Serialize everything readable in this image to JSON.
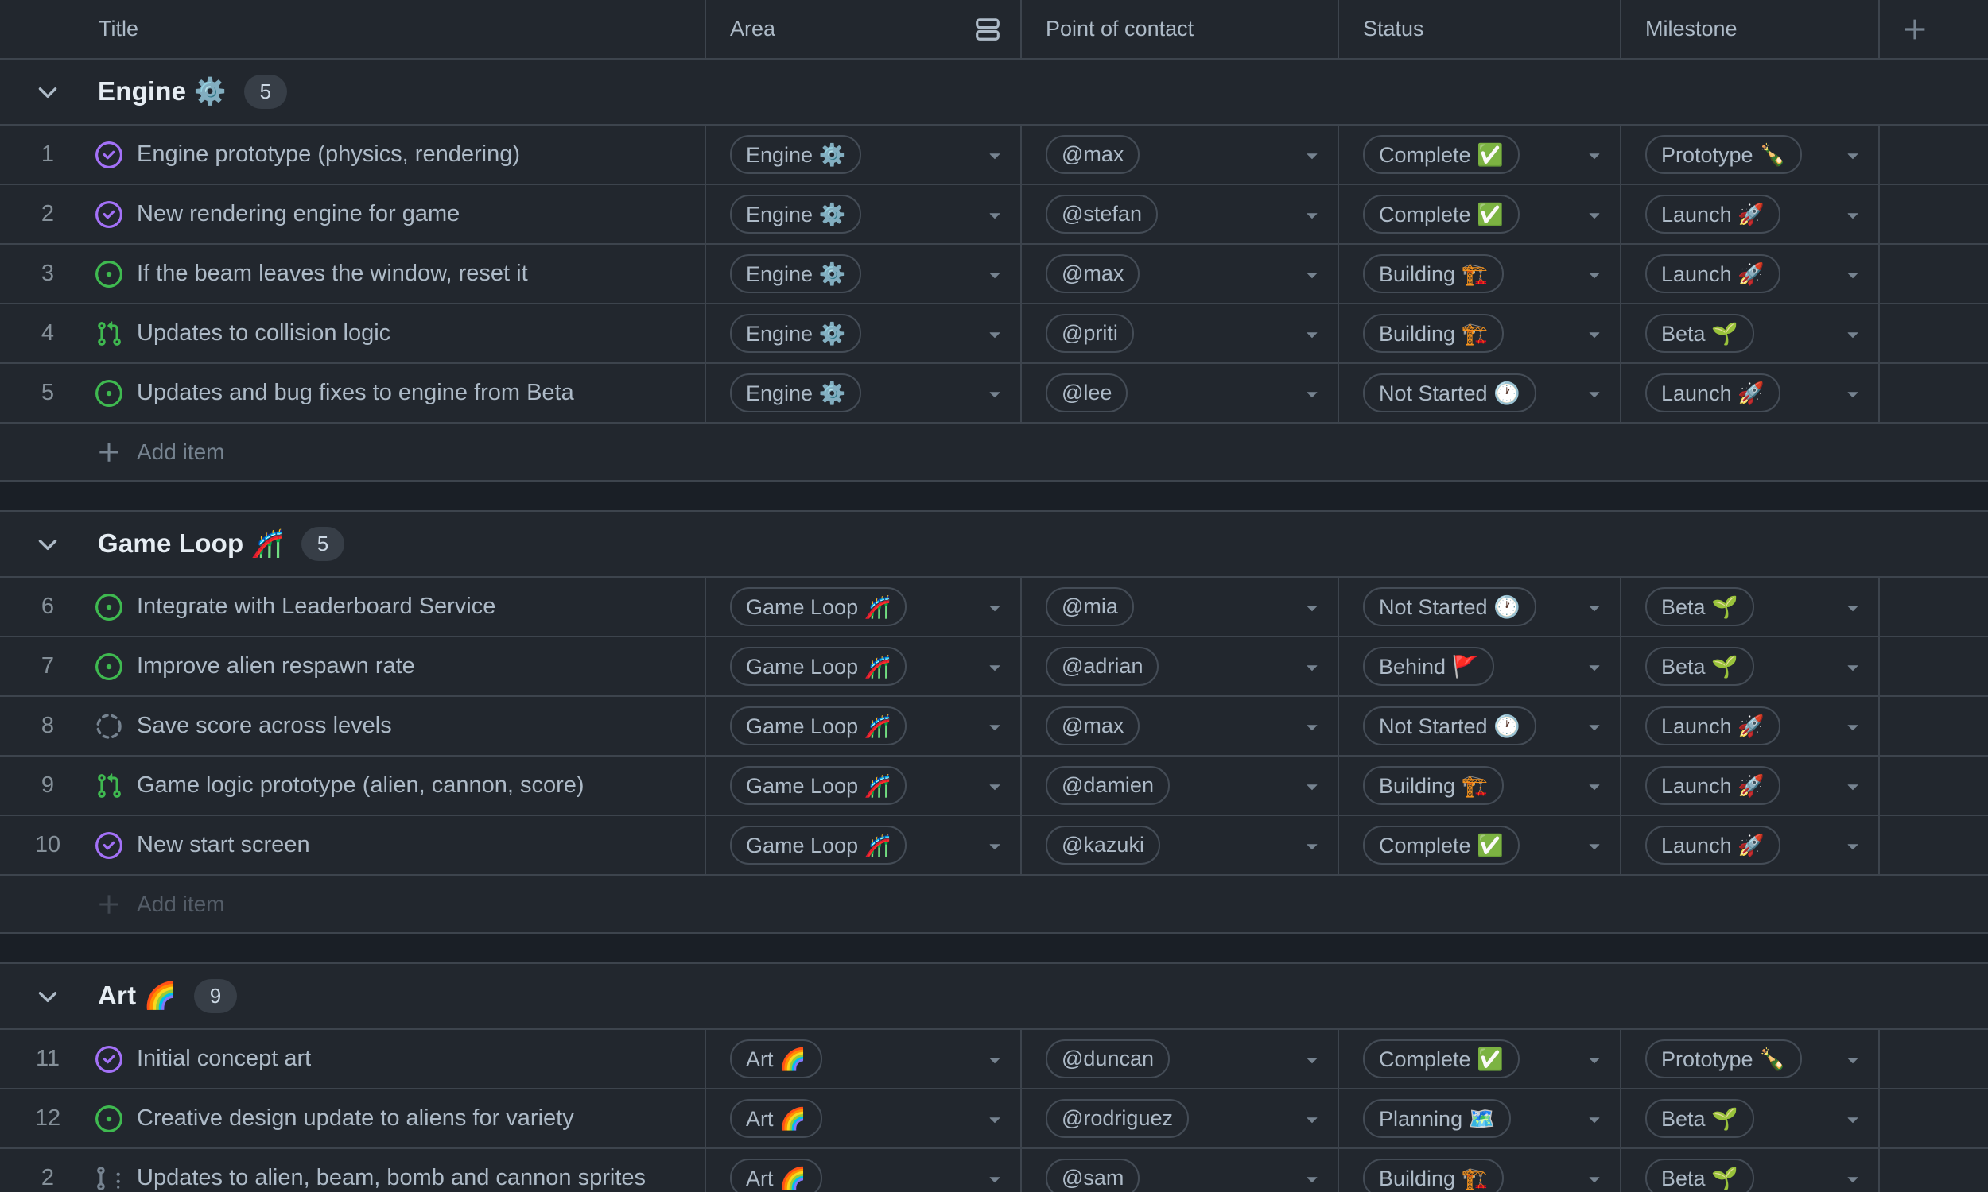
{
  "header": {
    "columns": [
      {
        "label": "Title"
      },
      {
        "label": "Area"
      },
      {
        "label": "Point of contact"
      },
      {
        "label": "Status"
      },
      {
        "label": "Milestone"
      }
    ]
  },
  "colors": {
    "issue_closed_purple": "#a371f7",
    "issue_open_green": "#3fb950",
    "draft_gray": "#768390",
    "row_background": "#22272e",
    "divider_band": "#1a1f26",
    "border": "#3d444d"
  },
  "groups": [
    {
      "name": "Engine ⚙️",
      "count": "5",
      "add_label": "Add item",
      "add_dim": false,
      "rows": [
        {
          "num": "1",
          "type": "issue-closed",
          "title": "Engine prototype (physics, rendering)",
          "area": "Engine ⚙️",
          "contact": "@max",
          "status": "Complete ✅",
          "milestone": "Prototype 🍾"
        },
        {
          "num": "2",
          "type": "issue-closed",
          "title": "New rendering engine for game",
          "area": "Engine ⚙️",
          "contact": "@stefan",
          "status": "Complete ✅",
          "milestone": "Launch 🚀"
        },
        {
          "num": "3",
          "type": "issue-open",
          "title": "If the beam leaves the window, reset it",
          "area": "Engine ⚙️",
          "contact": "@max",
          "status": "Building 🏗️",
          "milestone": "Launch 🚀"
        },
        {
          "num": "4",
          "type": "pull-request",
          "title": "Updates to collision logic",
          "area": "Engine ⚙️",
          "contact": "@priti",
          "status": "Building 🏗️",
          "milestone": "Beta 🌱"
        },
        {
          "num": "5",
          "type": "issue-open",
          "title": "Updates and bug fixes to engine from Beta",
          "area": "Engine ⚙️",
          "contact": "@lee",
          "status": "Not Started 🕐",
          "milestone": "Launch 🚀"
        }
      ]
    },
    {
      "name": "Game Loop 🎢",
      "count": "5",
      "add_label": "Add item",
      "add_dim": true,
      "rows": [
        {
          "num": "6",
          "type": "issue-open",
          "title": "Integrate with Leaderboard Service",
          "area": "Game Loop 🎢",
          "contact": "@mia",
          "status": "Not Started 🕐",
          "milestone": "Beta 🌱"
        },
        {
          "num": "7",
          "type": "issue-open",
          "title": "Improve alien respawn rate",
          "area": "Game Loop 🎢",
          "contact": "@adrian",
          "status": "Behind 🚩",
          "milestone": "Beta 🌱"
        },
        {
          "num": "8",
          "type": "draft-issue",
          "title": "Save score across levels",
          "area": "Game Loop 🎢",
          "contact": "@max",
          "status": "Not Started 🕐",
          "milestone": "Launch 🚀"
        },
        {
          "num": "9",
          "type": "pull-request",
          "title": "Game logic prototype (alien, cannon, score)",
          "area": "Game Loop 🎢",
          "contact": "@damien",
          "status": "Building 🏗️",
          "milestone": "Launch 🚀"
        },
        {
          "num": "10",
          "type": "issue-closed",
          "title": "New start screen",
          "area": "Game Loop 🎢",
          "contact": "@kazuki",
          "status": "Complete ✅",
          "milestone": "Launch 🚀"
        }
      ]
    },
    {
      "name": "Art 🌈",
      "count": "9",
      "add_label": null,
      "add_dim": false,
      "rows": [
        {
          "num": "11",
          "type": "issue-closed",
          "title": "Initial concept art",
          "area": "Art 🌈",
          "contact": "@duncan",
          "status": "Complete ✅",
          "milestone": "Prototype 🍾"
        },
        {
          "num": "12",
          "type": "issue-open",
          "title": "Creative design update to aliens for variety",
          "area": "Art 🌈",
          "contact": "@rodriguez",
          "status": "Planning 🗺️",
          "milestone": "Beta 🌱"
        },
        {
          "num": "2",
          "type": "draft-pull-request",
          "title": "Updates to alien, beam, bomb and cannon sprites",
          "area": "Art 🌈",
          "contact": "@sam",
          "status": "Building 🏗️",
          "milestone": "Beta 🌱"
        }
      ]
    }
  ]
}
